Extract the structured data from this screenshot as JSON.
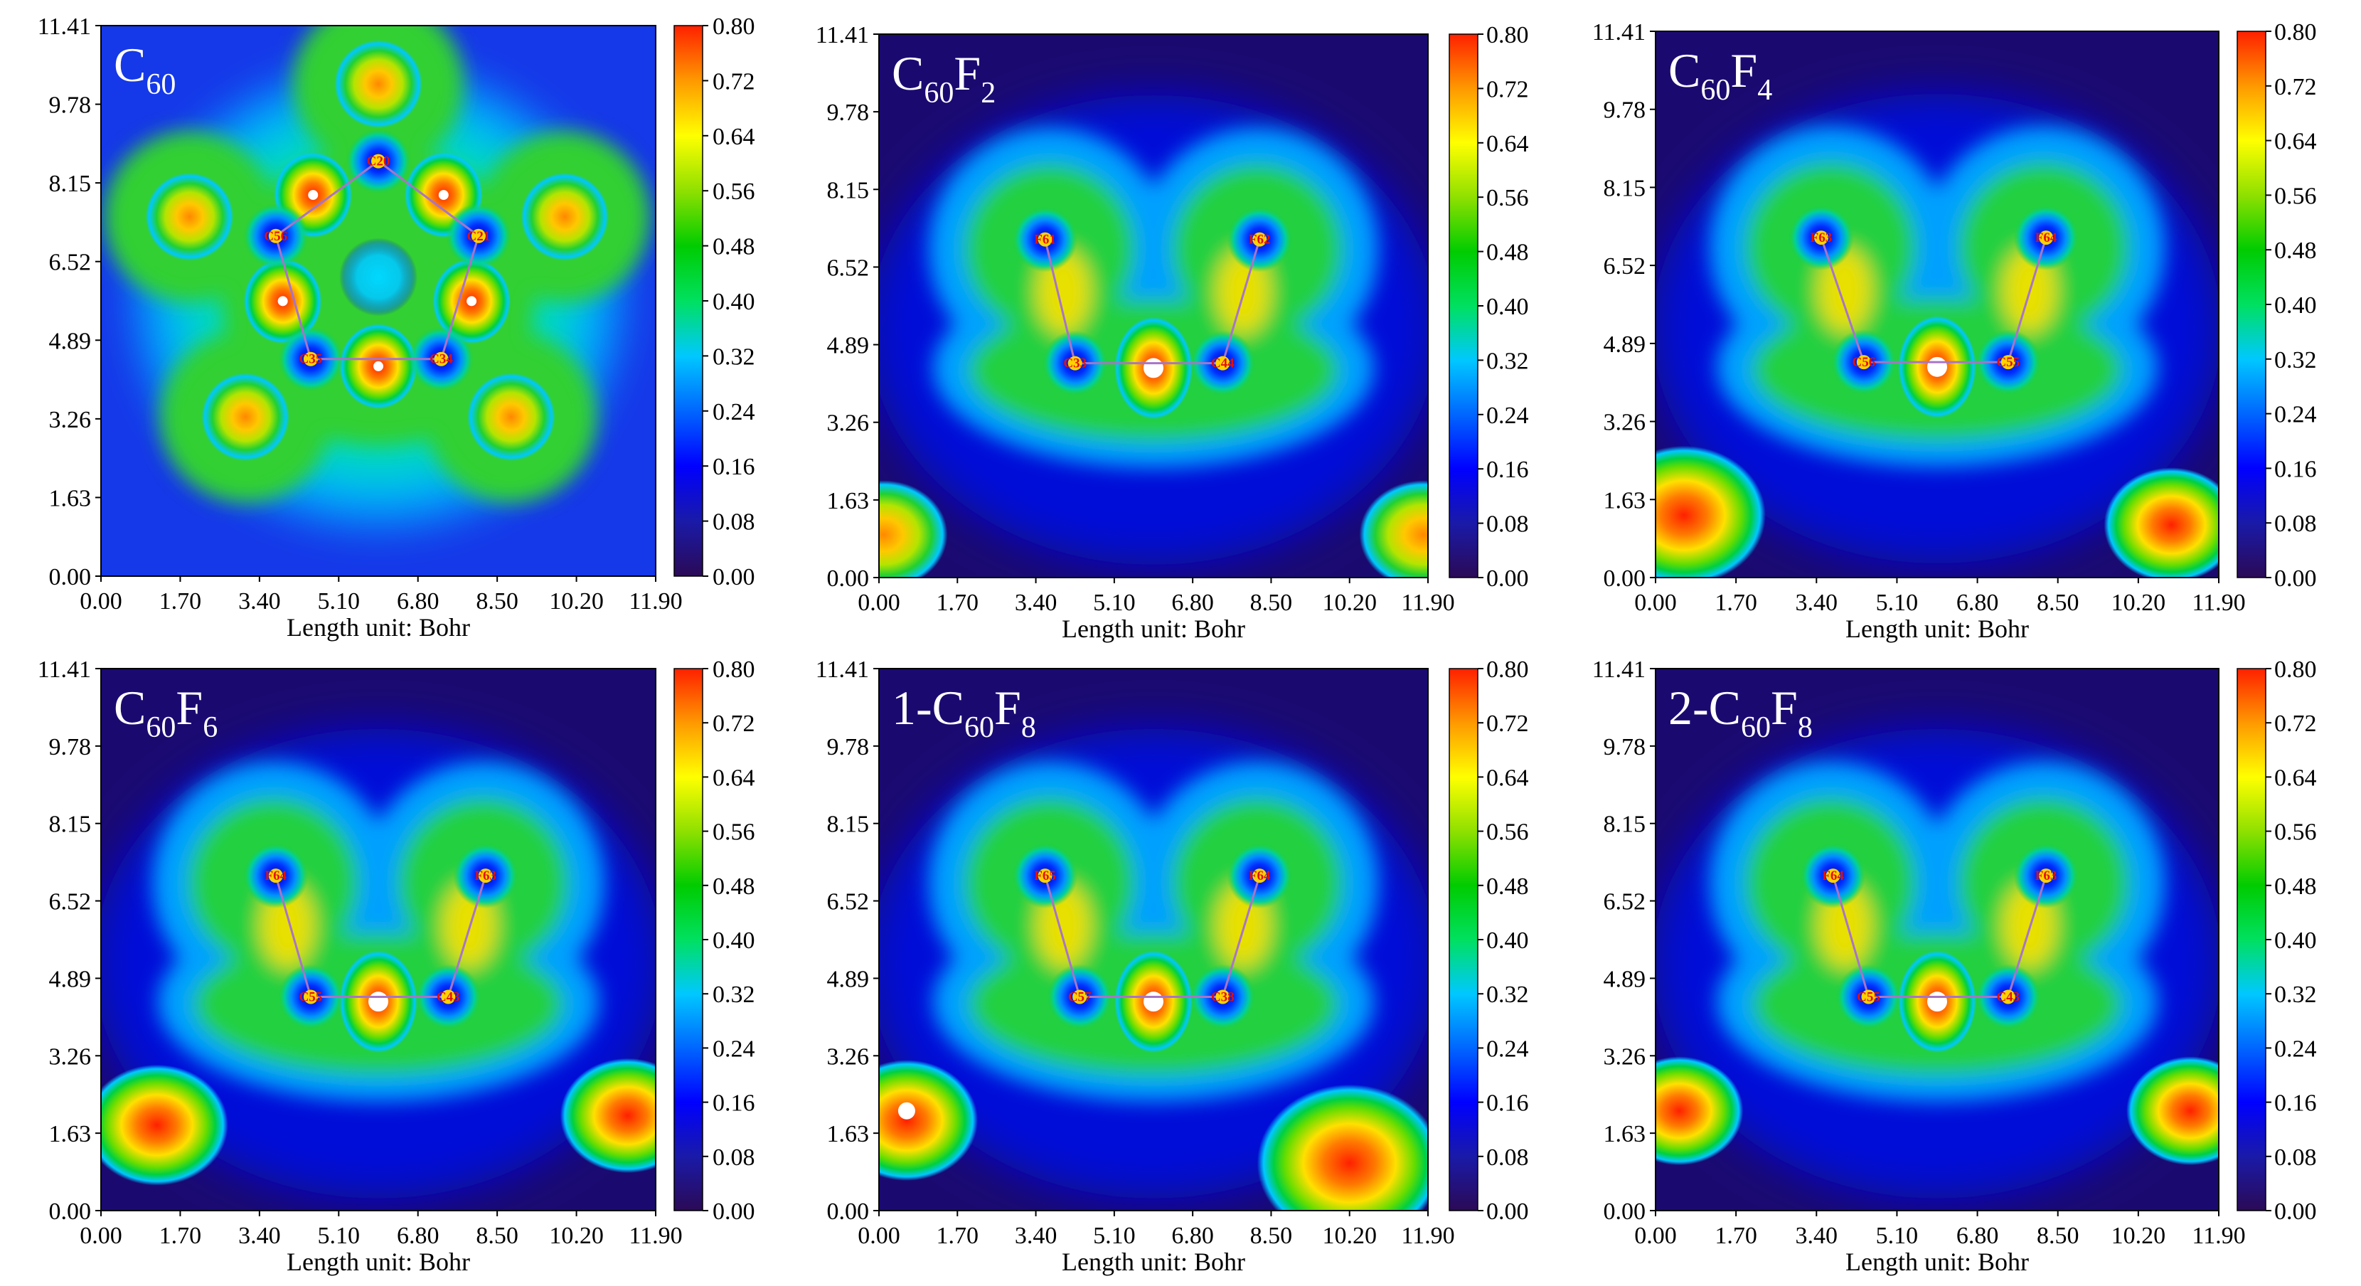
{
  "figure": {
    "description_free": true,
    "colorbar": {
      "ticks": [
        "0.80",
        "0.72",
        "0.64",
        "0.56",
        "0.48",
        "0.40",
        "0.32",
        "0.24",
        "0.16",
        "0.08",
        "0.00"
      ],
      "min": 0.0,
      "max": 0.8,
      "stops": [
        "#2b0a56",
        "#1a1aa8",
        "#0000ff",
        "#0066ff",
        "#00c8ff",
        "#00e060",
        "#00cc00",
        "#8fe000",
        "#ffff00",
        "#ff9900",
        "#ff2000"
      ]
    },
    "x_ticks": [
      "0.00",
      "1.70",
      "3.40",
      "5.10",
      "6.80",
      "8.50",
      "10.20",
      "11.90"
    ],
    "y_ticks": [
      "11.41",
      "9.78",
      "8.15",
      "6.52",
      "4.89",
      "3.26",
      "1.63",
      "0.00"
    ],
    "x_label": "Length unit: Bohr"
  },
  "chart_data": [
    {
      "type": "heatmap",
      "title_main": "C",
      "title_sub1": "60",
      "title_mid": "",
      "title_sub2": "",
      "xlabel": "Length unit: Bohr",
      "xlim": [
        0.0,
        11.9
      ],
      "ylim": [
        0.0,
        11.41
      ],
      "atom_labels": [
        "C20",
        "C21",
        "C34",
        "C35",
        "C56"
      ],
      "atoms": [
        {
          "label": "C20",
          "x": 5.95,
          "y": 8.6
        },
        {
          "label": "C21",
          "x": 8.1,
          "y": 7.05
        },
        {
          "label": "C34",
          "x": 7.3,
          "y": 4.5
        },
        {
          "label": "C35",
          "x": 4.5,
          "y": 4.5
        },
        {
          "label": "C56",
          "x": 3.75,
          "y": 7.05
        }
      ]
    },
    {
      "type": "heatmap",
      "title_main": "C",
      "title_sub1": "60",
      "title_mid": "F",
      "title_sub2": "2",
      "xlabel": "Length unit: Bohr",
      "xlim": [
        0.0,
        11.9
      ],
      "ylim": [
        0.0,
        11.41
      ],
      "atom_labels": [
        "F61",
        "F62",
        "C33",
        "C44"
      ],
      "atoms": [
        {
          "label": "F61",
          "x": 3.6,
          "y": 7.1
        },
        {
          "label": "F62",
          "x": 8.25,
          "y": 7.1
        },
        {
          "label": "C33",
          "x": 4.25,
          "y": 4.5
        },
        {
          "label": "C44",
          "x": 7.45,
          "y": 4.5
        }
      ]
    },
    {
      "type": "heatmap",
      "title_main": "C",
      "title_sub1": "60",
      "title_mid": "F",
      "title_sub2": "4",
      "xlabel": "Length unit: Bohr",
      "xlim": [
        0.0,
        11.9
      ],
      "ylim": [
        0.0,
        11.41
      ],
      "atom_labels": [
        "F63",
        "F64",
        "C56",
        "C55"
      ],
      "atoms": [
        {
          "label": "F63",
          "x": 3.5,
          "y": 7.1
        },
        {
          "label": "F64",
          "x": 8.25,
          "y": 7.1
        },
        {
          "label": "C56",
          "x": 4.4,
          "y": 4.5
        },
        {
          "label": "C55",
          "x": 7.45,
          "y": 4.5
        }
      ]
    },
    {
      "type": "heatmap",
      "title_main": "C",
      "title_sub1": "60",
      "title_mid": "F",
      "title_sub2": "6",
      "xlabel": "Length unit: Bohr",
      "xlim": [
        0.0,
        11.9
      ],
      "ylim": [
        0.0,
        11.41
      ],
      "atom_labels": [
        "F64",
        "F63",
        "C55",
        "C43"
      ],
      "atoms": [
        {
          "label": "F64",
          "x": 3.75,
          "y": 7.05
        },
        {
          "label": "F63",
          "x": 8.25,
          "y": 7.05
        },
        {
          "label": "C55",
          "x": 4.5,
          "y": 4.5
        },
        {
          "label": "C43",
          "x": 7.45,
          "y": 4.5
        }
      ]
    },
    {
      "type": "heatmap",
      "title_main": "1-C",
      "title_sub1": "60",
      "title_mid": "F",
      "title_sub2": "8",
      "xlabel": "Length unit: Bohr",
      "xlim": [
        0.0,
        11.9
      ],
      "ylim": [
        0.0,
        11.41
      ],
      "atom_labels": [
        "F65",
        "F64",
        "C57",
        "C38"
      ],
      "atoms": [
        {
          "label": "F65",
          "x": 3.6,
          "y": 7.05
        },
        {
          "label": "F64",
          "x": 8.25,
          "y": 7.05
        },
        {
          "label": "C57",
          "x": 4.35,
          "y": 4.5
        },
        {
          "label": "C38",
          "x": 7.45,
          "y": 4.5
        }
      ]
    },
    {
      "type": "heatmap",
      "title_main": "2-C",
      "title_sub1": "60",
      "title_mid": "F",
      "title_sub2": "8",
      "xlabel": "Length unit: Bohr",
      "xlim": [
        0.0,
        11.9
      ],
      "ylim": [
        0.0,
        11.41
      ],
      "atom_labels": [
        "F64",
        "F63",
        "C55",
        "C43"
      ],
      "atoms": [
        {
          "label": "F64",
          "x": 3.75,
          "y": 7.05
        },
        {
          "label": "F63",
          "x": 8.25,
          "y": 7.05
        },
        {
          "label": "C55",
          "x": 4.5,
          "y": 4.5
        },
        {
          "label": "C43",
          "x": 7.45,
          "y": 4.5
        }
      ]
    }
  ]
}
